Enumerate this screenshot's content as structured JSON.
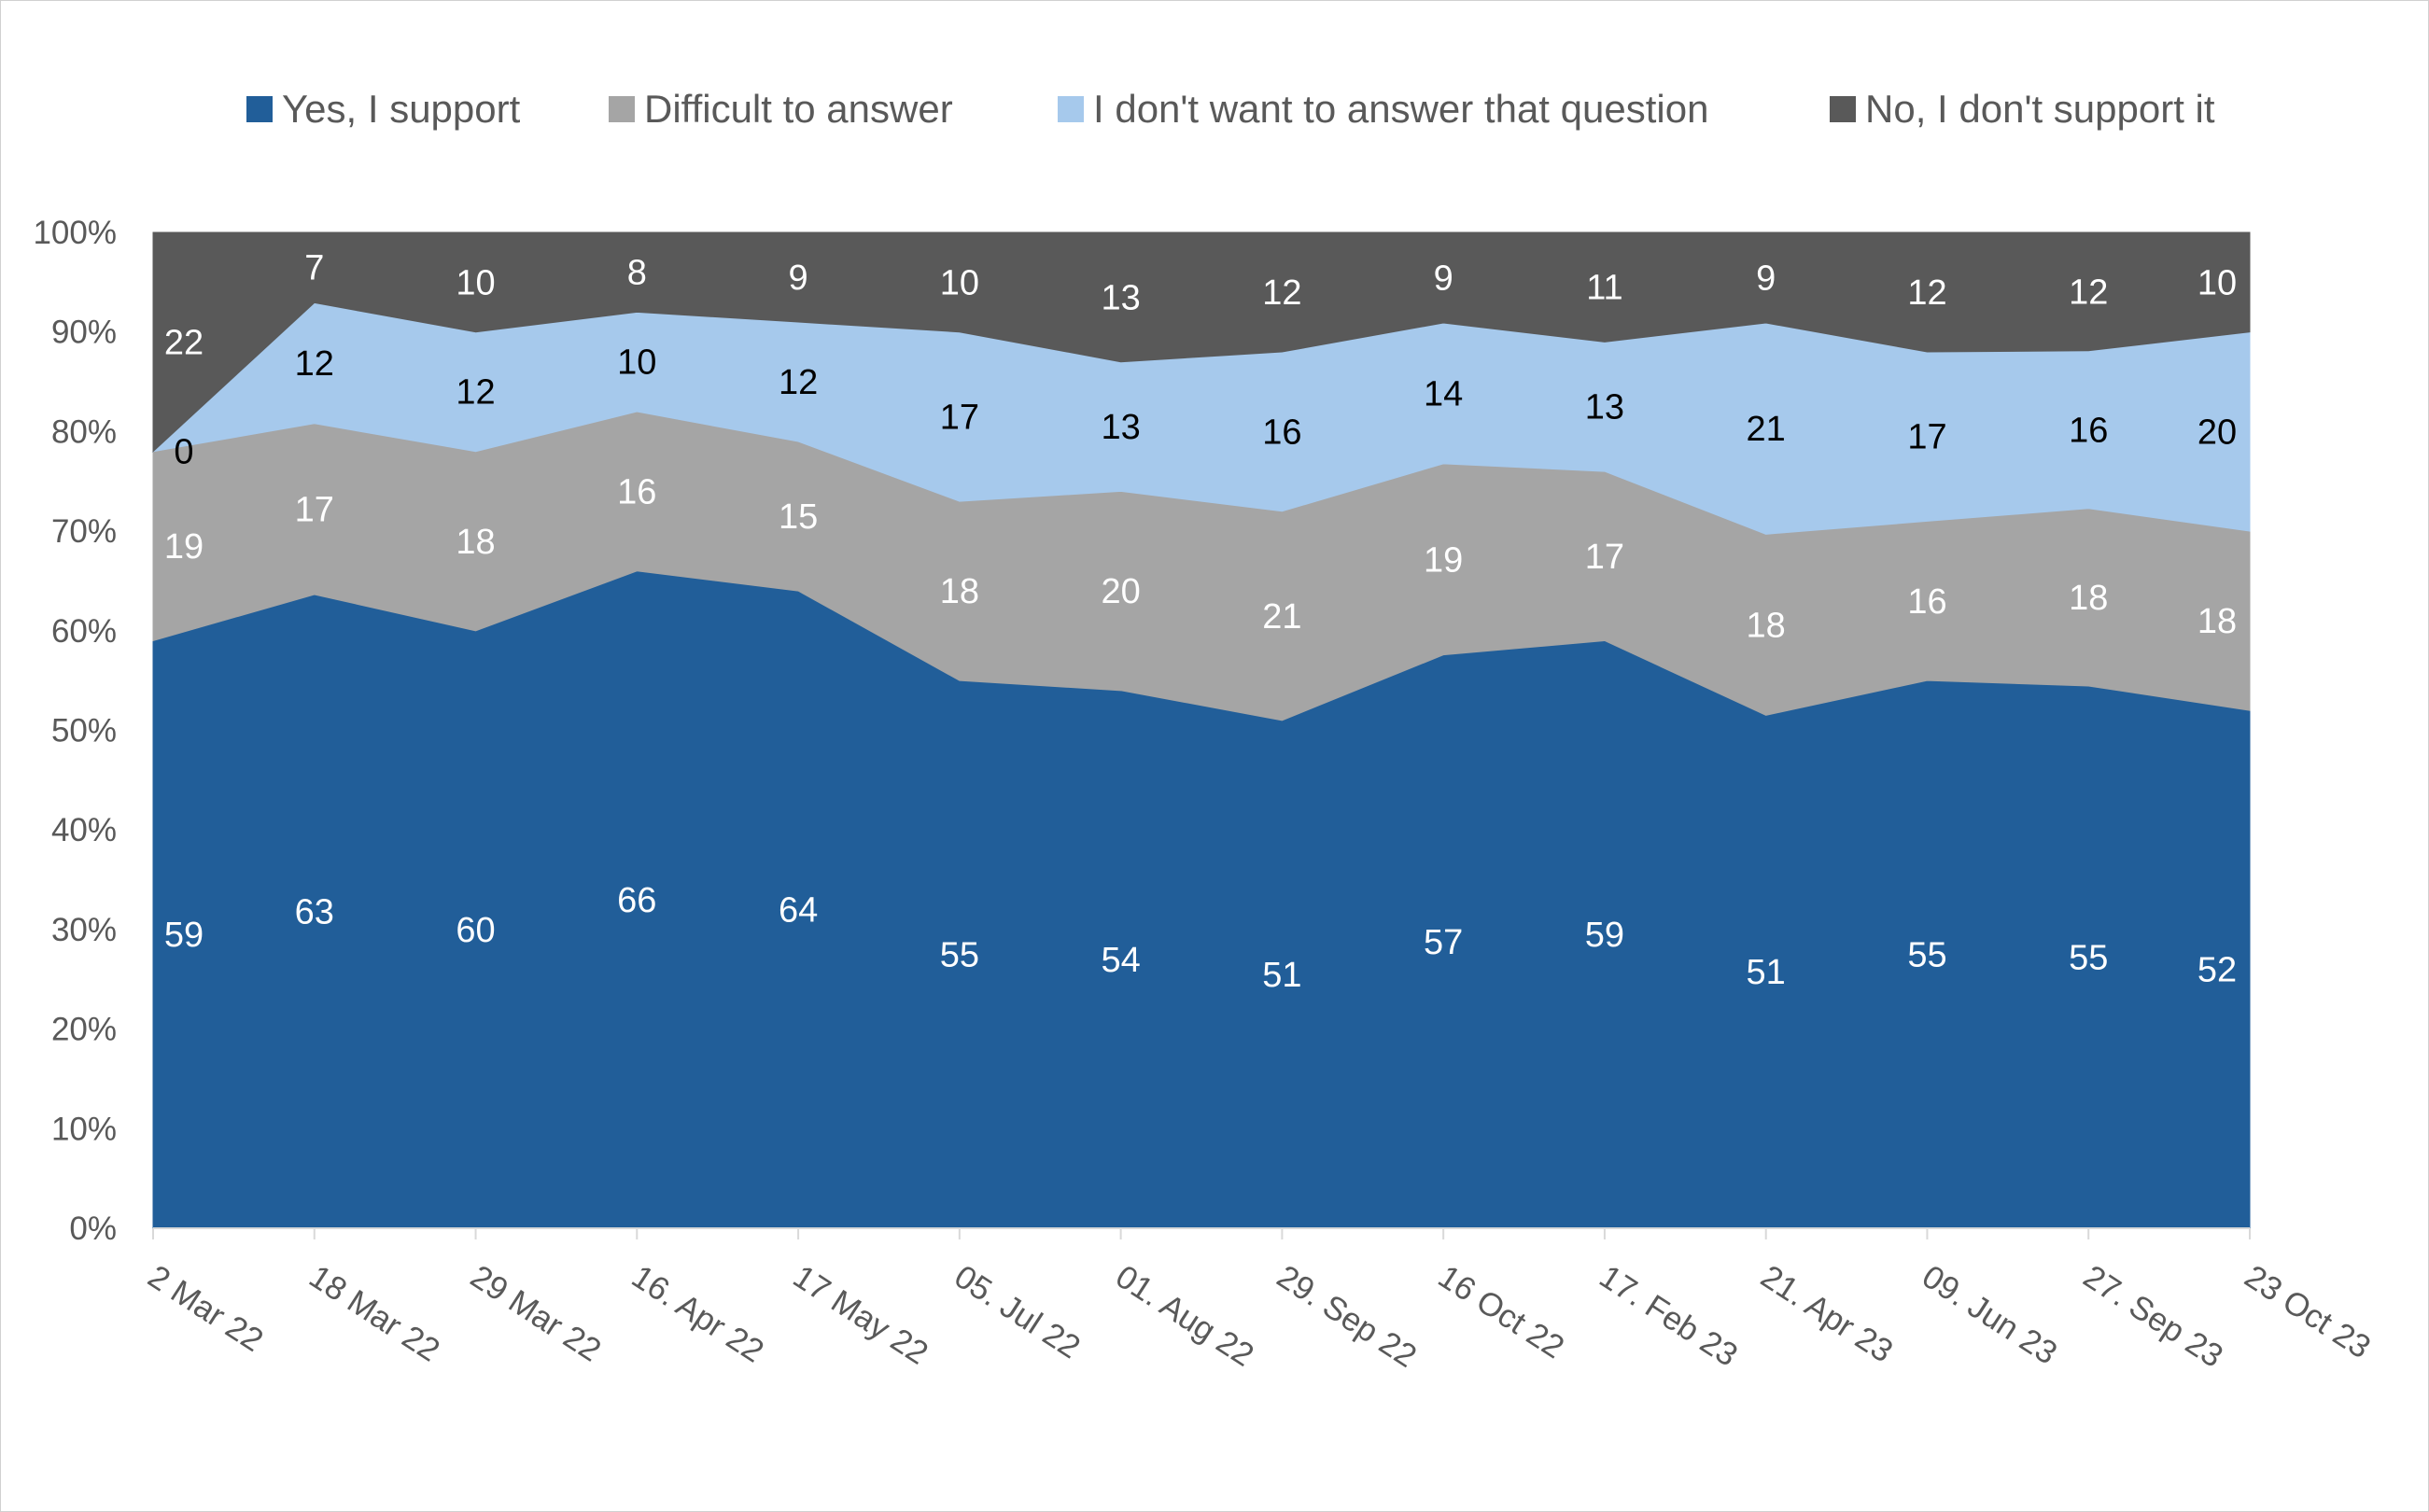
{
  "chart_data": {
    "type": "area",
    "stacked": true,
    "percent_stacked": true,
    "categories": [
      "2 Mar 22",
      "18 Mar 22",
      "29 Mar 22",
      "16. Apr 22",
      "17 May 22",
      "05. Jul 22",
      "01. Aug 22",
      "29. Sep 22",
      "16 Oct 22",
      "17. Feb 23",
      "21. Apr 23",
      "09. Jun 23",
      "27. Sep 23",
      "23 Oct 23"
    ],
    "series": [
      {
        "name": "Yes, I support",
        "color": "#215e99",
        "label_color": "#ffffff",
        "values": [
          59,
          63,
          60,
          66,
          64,
          55,
          54,
          51,
          57,
          59,
          51,
          55,
          55,
          52
        ]
      },
      {
        "name": "Difficult to answer",
        "color": "#a5a5a5",
        "label_color": "#ffffff",
        "values": [
          19,
          17,
          18,
          16,
          15,
          18,
          20,
          21,
          19,
          17,
          18,
          16,
          18,
          18
        ]
      },
      {
        "name": "I don't want to answer that question",
        "color": "#a6c9ec",
        "label_color": "#000000",
        "values": [
          0,
          12,
          12,
          10,
          12,
          17,
          13,
          16,
          14,
          13,
          21,
          17,
          16,
          20
        ]
      },
      {
        "name": "No, I don't support it",
        "color": "#595959",
        "label_color": "#ffffff",
        "values": [
          22,
          7,
          10,
          8,
          9,
          10,
          13,
          12,
          9,
          11,
          9,
          12,
          12,
          10
        ]
      }
    ],
    "yticks": [
      "0%",
      "10%",
      "20%",
      "30%",
      "40%",
      "50%",
      "60%",
      "70%",
      "80%",
      "90%",
      "100%"
    ],
    "ylim": [
      0,
      100
    ],
    "legend_position": "top",
    "grid": false,
    "data_labels": true,
    "x_tick_rotation": "diagonal"
  }
}
